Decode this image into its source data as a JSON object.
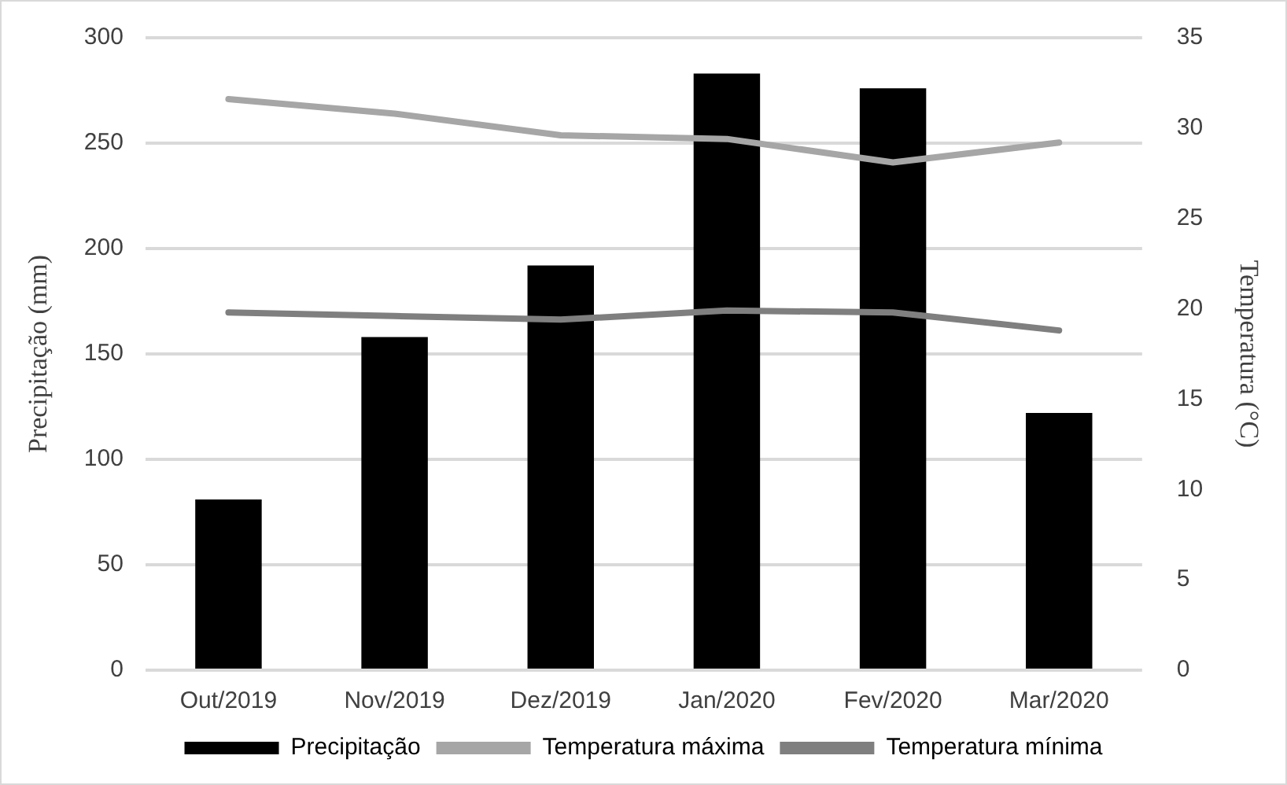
{
  "chart_data": {
    "type": "bar",
    "categories": [
      "Out/2019",
      "Nov/2019",
      "Dez/2019",
      "Jan/2020",
      "Fev/2020",
      "Mar/2020"
    ],
    "ylabel": "Precipitação (mm)",
    "y2label": "Temperatura (°C)",
    "series": [
      {
        "name": "Precipitação",
        "color": "#000000",
        "values": [
          81,
          158,
          192,
          283,
          276,
          122
        ]
      },
      {
        "name": "Temperatura máxima",
        "type": "line",
        "axis": "y2",
        "color": "#a6a6a6",
        "values": [
          31.6,
          30.8,
          29.6,
          29.4,
          28.1,
          29.2
        ]
      },
      {
        "name": "Temperatura mínima",
        "type": "line",
        "axis": "y2",
        "color": "#7f7f7f",
        "values": [
          19.8,
          19.6,
          19.4,
          19.9,
          19.8,
          18.8
        ]
      }
    ],
    "ylim": [
      0,
      300
    ],
    "yticks": [
      0,
      50,
      100,
      150,
      200,
      250,
      300
    ],
    "y2lim": [
      0,
      35
    ],
    "y2ticks": [
      0,
      5,
      10,
      15,
      20,
      25,
      30,
      35
    ],
    "grid": "y",
    "legend": "bottom",
    "marker": "none"
  }
}
